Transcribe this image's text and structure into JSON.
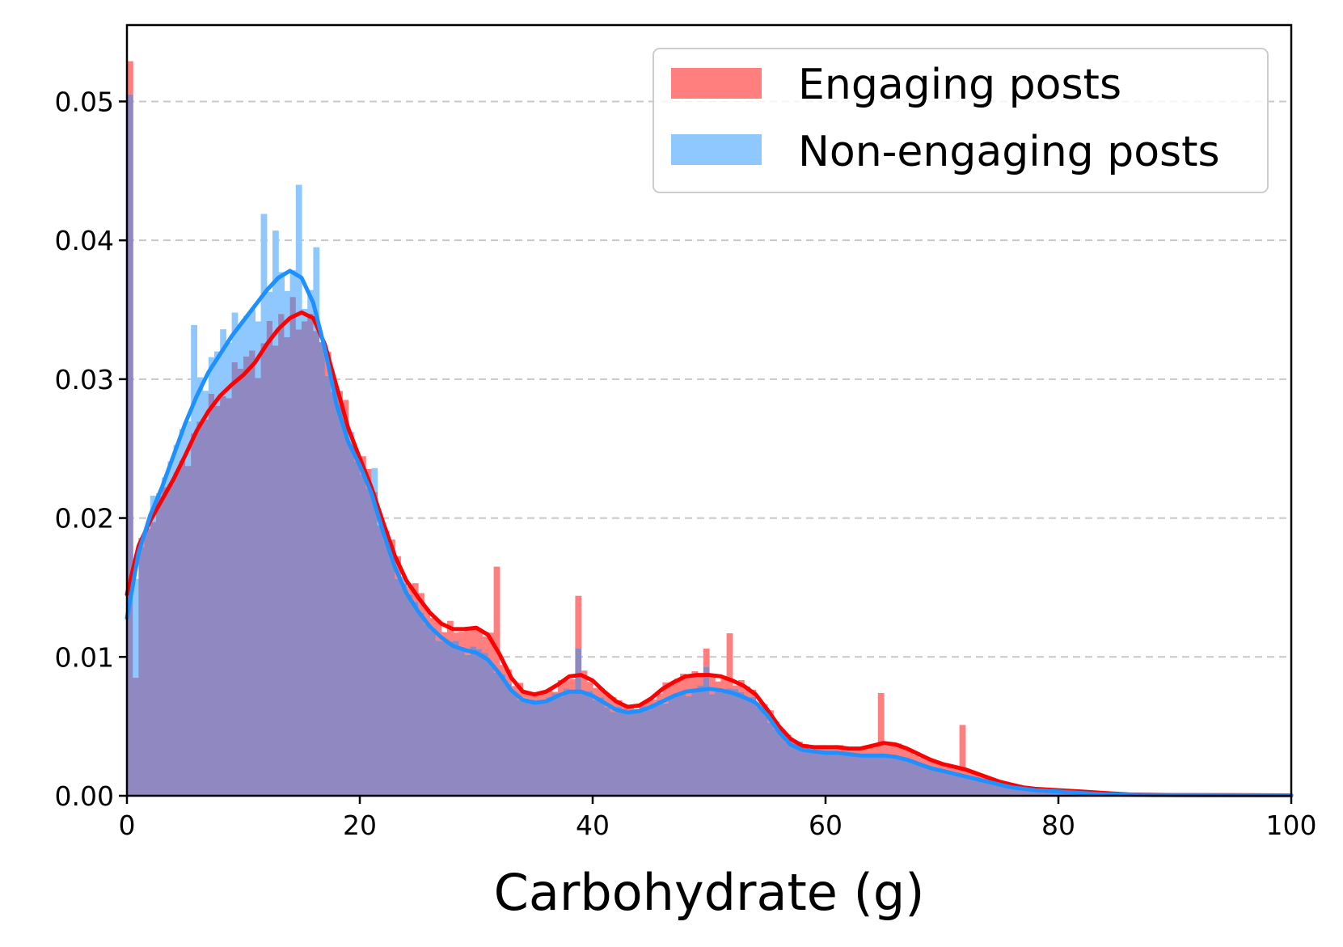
{
  "chart_data": {
    "type": "histogram",
    "title": "",
    "xlabel": "Carbohydrate  (g)",
    "ylabel": "",
    "xlim": [
      0,
      100
    ],
    "ylim": [
      0,
      0.0555
    ],
    "x_ticks": [
      "0",
      "20",
      "40",
      "60",
      "80",
      "100"
    ],
    "y_ticks": [
      "0.00",
      "0.01",
      "0.02",
      "0.03",
      "0.04",
      "0.05"
    ],
    "grid": "horizontal dashed",
    "legend_position": "top-right",
    "bin_width": 0.5,
    "series": [
      {
        "name": "Engaging posts",
        "color": "#ff7f7f",
        "kde_color": "#ff0000",
        "kde": [
          [
            0,
            0.0145
          ],
          [
            1,
            0.018
          ],
          [
            2,
            0.0198
          ],
          [
            3,
            0.0213
          ],
          [
            4,
            0.0228
          ],
          [
            5,
            0.0245
          ],
          [
            6,
            0.0263
          ],
          [
            7,
            0.0277
          ],
          [
            8,
            0.0288
          ],
          [
            9,
            0.0296
          ],
          [
            10,
            0.0303
          ],
          [
            11,
            0.0312
          ],
          [
            12,
            0.0325
          ],
          [
            13,
            0.0336
          ],
          [
            14,
            0.0344
          ],
          [
            15,
            0.0348
          ],
          [
            16,
            0.0344
          ],
          [
            17,
            0.0325
          ],
          [
            18,
            0.0295
          ],
          [
            19,
            0.0265
          ],
          [
            20,
            0.0243
          ],
          [
            21,
            0.0222
          ],
          [
            22,
            0.0197
          ],
          [
            23,
            0.0173
          ],
          [
            24,
            0.0155
          ],
          [
            25,
            0.0143
          ],
          [
            26,
            0.0132
          ],
          [
            27,
            0.0124
          ],
          [
            28,
            0.012
          ],
          [
            29,
            0.012
          ],
          [
            30,
            0.0121
          ],
          [
            31,
            0.0116
          ],
          [
            32,
            0.0102
          ],
          [
            33,
            0.0085
          ],
          [
            34,
            0.0075
          ],
          [
            35,
            0.0073
          ],
          [
            36,
            0.0075
          ],
          [
            37,
            0.008
          ],
          [
            38,
            0.0086
          ],
          [
            39,
            0.0087
          ],
          [
            40,
            0.0083
          ],
          [
            41,
            0.0075
          ],
          [
            42,
            0.0068
          ],
          [
            43,
            0.0064
          ],
          [
            44,
            0.0065
          ],
          [
            45,
            0.007
          ],
          [
            46,
            0.0077
          ],
          [
            47,
            0.0082
          ],
          [
            48,
            0.0086
          ],
          [
            49,
            0.0087
          ],
          [
            50,
            0.0087
          ],
          [
            51,
            0.0086
          ],
          [
            52,
            0.0083
          ],
          [
            53,
            0.0079
          ],
          [
            54,
            0.0073
          ],
          [
            55,
            0.0062
          ],
          [
            56,
            0.005
          ],
          [
            57,
            0.0041
          ],
          [
            58,
            0.0036
          ],
          [
            59,
            0.0035
          ],
          [
            60,
            0.0035
          ],
          [
            61,
            0.0035
          ],
          [
            62,
            0.0034
          ],
          [
            63,
            0.0034
          ],
          [
            64,
            0.0036
          ],
          [
            65,
            0.0038
          ],
          [
            66,
            0.0037
          ],
          [
            67,
            0.0034
          ],
          [
            68,
            0.003
          ],
          [
            69,
            0.0026
          ],
          [
            70,
            0.0023
          ],
          [
            71,
            0.0021
          ],
          [
            72,
            0.0019
          ],
          [
            73,
            0.0016
          ],
          [
            74,
            0.0013
          ],
          [
            75,
            0.001
          ],
          [
            76,
            0.0008
          ],
          [
            77,
            0.0006
          ],
          [
            78,
            0.0005
          ],
          [
            80,
            0.0004
          ],
          [
            82,
            0.0003
          ],
          [
            84,
            0.0002
          ],
          [
            86,
            0.0001
          ],
          [
            90,
            5e-05
          ],
          [
            100,
            3e-05
          ]
        ],
        "spikes": [
          [
            0.25,
            0.0529
          ],
          [
            0.75,
            0.0085
          ],
          [
            31.75,
            0.0165
          ],
          [
            38.75,
            0.0144
          ],
          [
            49.75,
            0.0106
          ],
          [
            51.75,
            0.0117
          ],
          [
            64.75,
            0.0074
          ],
          [
            71.75,
            0.0051
          ]
        ]
      },
      {
        "name": "Non-engaging posts",
        "color": "#8fc7ff",
        "kde_color": "#1e90ff",
        "kde": [
          [
            0,
            0.0128
          ],
          [
            1,
            0.0175
          ],
          [
            2,
            0.0202
          ],
          [
            3,
            0.0222
          ],
          [
            4,
            0.0245
          ],
          [
            5,
            0.0268
          ],
          [
            6,
            0.0288
          ],
          [
            7,
            0.0305
          ],
          [
            8,
            0.0318
          ],
          [
            9,
            0.0331
          ],
          [
            10,
            0.0342
          ],
          [
            11,
            0.0353
          ],
          [
            12,
            0.0364
          ],
          [
            13,
            0.0373
          ],
          [
            14,
            0.0378
          ],
          [
            15,
            0.0373
          ],
          [
            16,
            0.0355
          ],
          [
            17,
            0.0322
          ],
          [
            18,
            0.0282
          ],
          [
            19,
            0.0255
          ],
          [
            20,
            0.0238
          ],
          [
            21,
            0.0218
          ],
          [
            22,
            0.019
          ],
          [
            23,
            0.0165
          ],
          [
            24,
            0.0146
          ],
          [
            25,
            0.0133
          ],
          [
            26,
            0.0122
          ],
          [
            27,
            0.0114
          ],
          [
            28,
            0.0108
          ],
          [
            29,
            0.0105
          ],
          [
            30,
            0.0103
          ],
          [
            31,
            0.0098
          ],
          [
            32,
            0.0088
          ],
          [
            33,
            0.0076
          ],
          [
            34,
            0.0069
          ],
          [
            35,
            0.0067
          ],
          [
            36,
            0.0068
          ],
          [
            37,
            0.0072
          ],
          [
            38,
            0.0075
          ],
          [
            39,
            0.0075
          ],
          [
            40,
            0.0072
          ],
          [
            41,
            0.0067
          ],
          [
            42,
            0.0062
          ],
          [
            43,
            0.006
          ],
          [
            44,
            0.0061
          ],
          [
            45,
            0.0064
          ],
          [
            46,
            0.0068
          ],
          [
            47,
            0.0072
          ],
          [
            48,
            0.0075
          ],
          [
            49,
            0.0076
          ],
          [
            50,
            0.0077
          ],
          [
            51,
            0.0076
          ],
          [
            52,
            0.0074
          ],
          [
            53,
            0.0071
          ],
          [
            54,
            0.0067
          ],
          [
            55,
            0.0058
          ],
          [
            56,
            0.0046
          ],
          [
            57,
            0.0037
          ],
          [
            58,
            0.0033
          ],
          [
            59,
            0.0032
          ],
          [
            60,
            0.0031
          ],
          [
            61,
            0.0031
          ],
          [
            62,
            0.003
          ],
          [
            63,
            0.0029
          ],
          [
            64,
            0.0029
          ],
          [
            65,
            0.0029
          ],
          [
            66,
            0.0028
          ],
          [
            67,
            0.0026
          ],
          [
            68,
            0.0023
          ],
          [
            69,
            0.002
          ],
          [
            70,
            0.0018
          ],
          [
            71,
            0.0016
          ],
          [
            72,
            0.0014
          ],
          [
            73,
            0.0012
          ],
          [
            74,
            0.001
          ],
          [
            75,
            0.0008
          ],
          [
            76,
            0.0006
          ],
          [
            77,
            0.0005
          ],
          [
            78,
            0.0004
          ],
          [
            80,
            0.0003
          ],
          [
            82,
            0.0002
          ],
          [
            84,
            0.0001
          ],
          [
            88,
            5e-05
          ],
          [
            100,
            3e-05
          ]
        ],
        "spikes": [
          [
            0.25,
            0.0505
          ],
          [
            5.75,
            0.0339
          ],
          [
            11.75,
            0.0419
          ],
          [
            12.75,
            0.0407
          ],
          [
            14.75,
            0.044
          ],
          [
            16.25,
            0.0395
          ],
          [
            19.25,
            0.0262
          ],
          [
            21.25,
            0.0236
          ],
          [
            38.75,
            0.0106
          ],
          [
            49.75,
            0.0093
          ]
        ]
      }
    ],
    "overlap_color": "#9088c0"
  }
}
